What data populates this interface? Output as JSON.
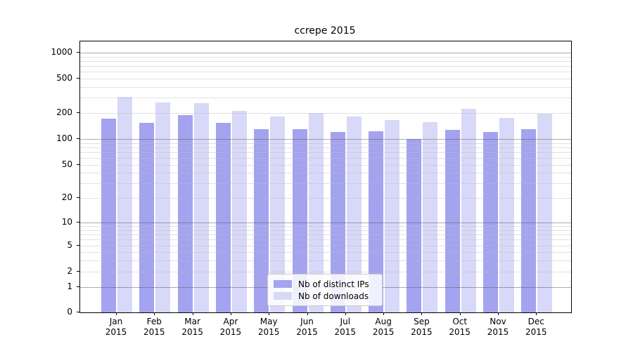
{
  "chart_data": {
    "type": "bar",
    "title": "ccrepe 2015",
    "scale": "log1p",
    "grid": true,
    "legend_position": "bottom-center",
    "categories": [
      "Jan",
      "Feb",
      "Mar",
      "Apr",
      "May",
      "Jun",
      "Jul",
      "Aug",
      "Sep",
      "Oct",
      "Nov",
      "Dec"
    ],
    "x_tick_year": "2015",
    "series": [
      {
        "name": "Nb of distinct IPs",
        "color": "#a3a3f0",
        "values": [
          173,
          155,
          188,
          154,
          130,
          131,
          121,
          122,
          100,
          127,
          121,
          131
        ]
      },
      {
        "name": "Nb of downloads",
        "color": "#d8d8f8",
        "values": [
          305,
          265,
          260,
          210,
          182,
          201,
          181,
          167,
          157,
          222,
          176,
          196
        ]
      }
    ],
    "y_tick_values": [
      0,
      1,
      2,
      5,
      10,
      20,
      50,
      100,
      200,
      500,
      1000
    ],
    "y_tick_labels": [
      "0",
      "1",
      "2",
      "5",
      "10",
      "20",
      "50",
      "100",
      "200",
      "500",
      "1000"
    ],
    "y_major_gridlines": [
      1,
      10,
      100,
      1000
    ],
    "y_minor_gridlines": [
      2,
      3,
      4,
      5,
      6,
      7,
      8,
      9,
      20,
      30,
      40,
      50,
      60,
      70,
      80,
      90,
      200,
      300,
      400,
      500,
      600,
      700,
      800,
      900
    ],
    "ylim": [
      0,
      1343
    ],
    "colors": {
      "major_grid": "#acacac",
      "minor_grid": "#e1e1e1",
      "axis": "#000000",
      "legend_border": "#cccccc"
    }
  }
}
